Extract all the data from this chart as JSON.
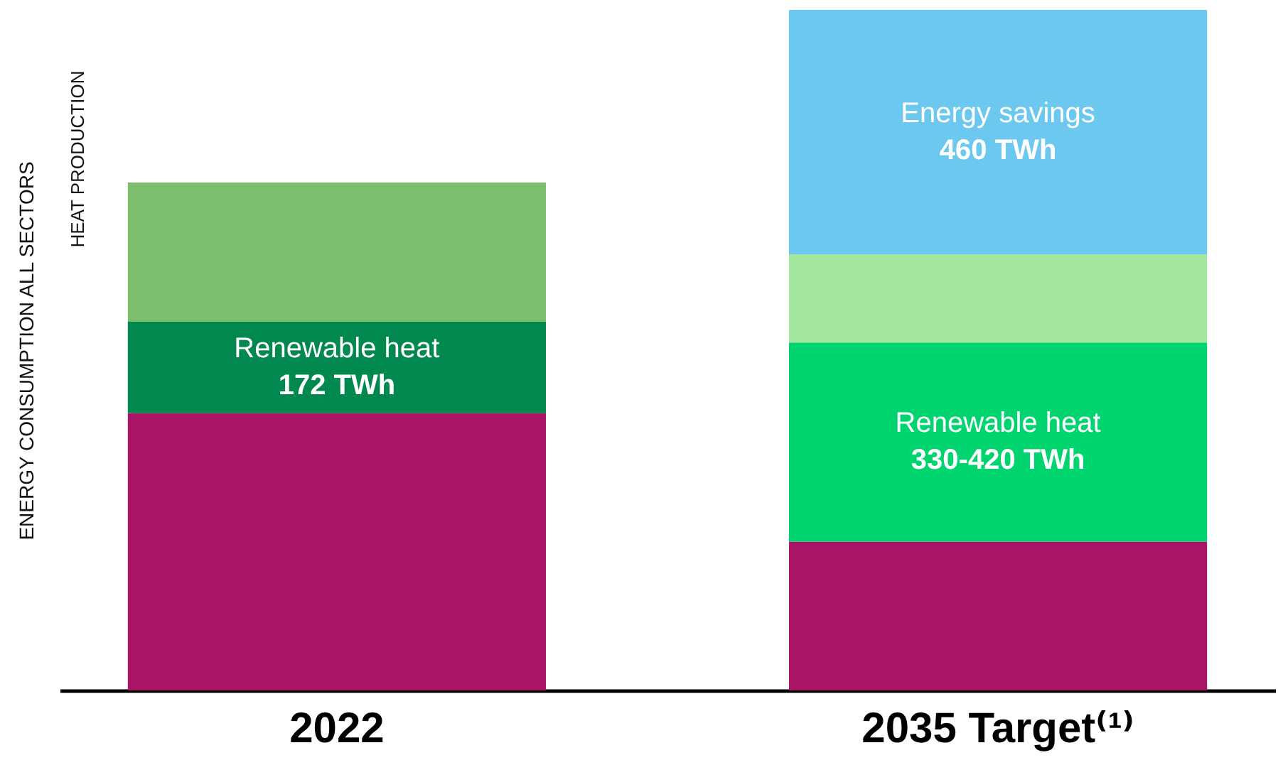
{
  "chart_data": {
    "type": "bar",
    "stacked": true,
    "tick_labels": "x",
    "ylabel": "ENERGY CONSUMPTION ALL SECTORS",
    "annotations": [
      "HEAT PRODUCTION"
    ],
    "categories": [
      "2022",
      "2035 Target⁽¹⁾"
    ],
    "series": [
      {
        "color": "#aa1464",
        "values": [
          522,
          280
        ]
      },
      {
        "name": "Renewable heat",
        "colors": [
          "#00884e",
          "#00d46f"
        ],
        "values": [
          172,
          375
        ],
        "value_labels": [
          "172 TWh",
          "330-420 TWh"
        ]
      },
      {
        "colors": [
          "#7cbd6e",
          "#a3e69e"
        ],
        "values": [
          262,
          166
        ]
      },
      {
        "name": "Energy savings",
        "color": "#6cc8ee",
        "values": [
          null,
          460
        ],
        "value_labels": [
          null,
          "460 TWh"
        ]
      }
    ]
  }
}
